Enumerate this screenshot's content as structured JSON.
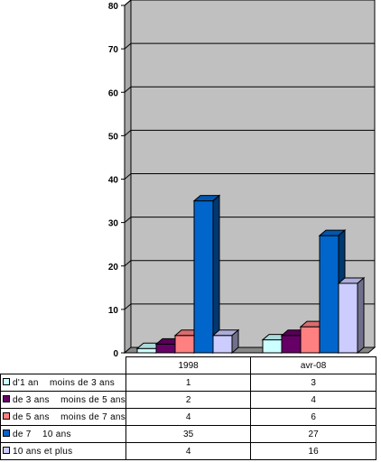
{
  "chart_data": {
    "type": "bar",
    "categories": [
      "1998",
      "avr-08"
    ],
    "series": [
      {
        "name": "d'1 an    moins de 3 ans",
        "values": [
          1,
          3
        ],
        "color": "#ccffff"
      },
      {
        "name": "de 3 ans    moins de 5 ans",
        "values": [
          2,
          4
        ],
        "color": "#660066"
      },
      {
        "name": "de 5 ans    moins de 7 ans",
        "values": [
          4,
          6
        ],
        "color": "#ff8080"
      },
      {
        "name": "de 7    10 ans",
        "values": [
          35,
          27
        ],
        "color": "#0066cc"
      },
      {
        "name": "10 ans et plus",
        "values": [
          4,
          16
        ],
        "color": "#ccccff"
      }
    ],
    "ylim": [
      0,
      80
    ],
    "yticks": [
      "0",
      "10",
      "20",
      "30",
      "40",
      "50",
      "60",
      "70",
      "80"
    ],
    "grid": true,
    "legend": "data table below chart",
    "background": "#c0c0c0"
  }
}
